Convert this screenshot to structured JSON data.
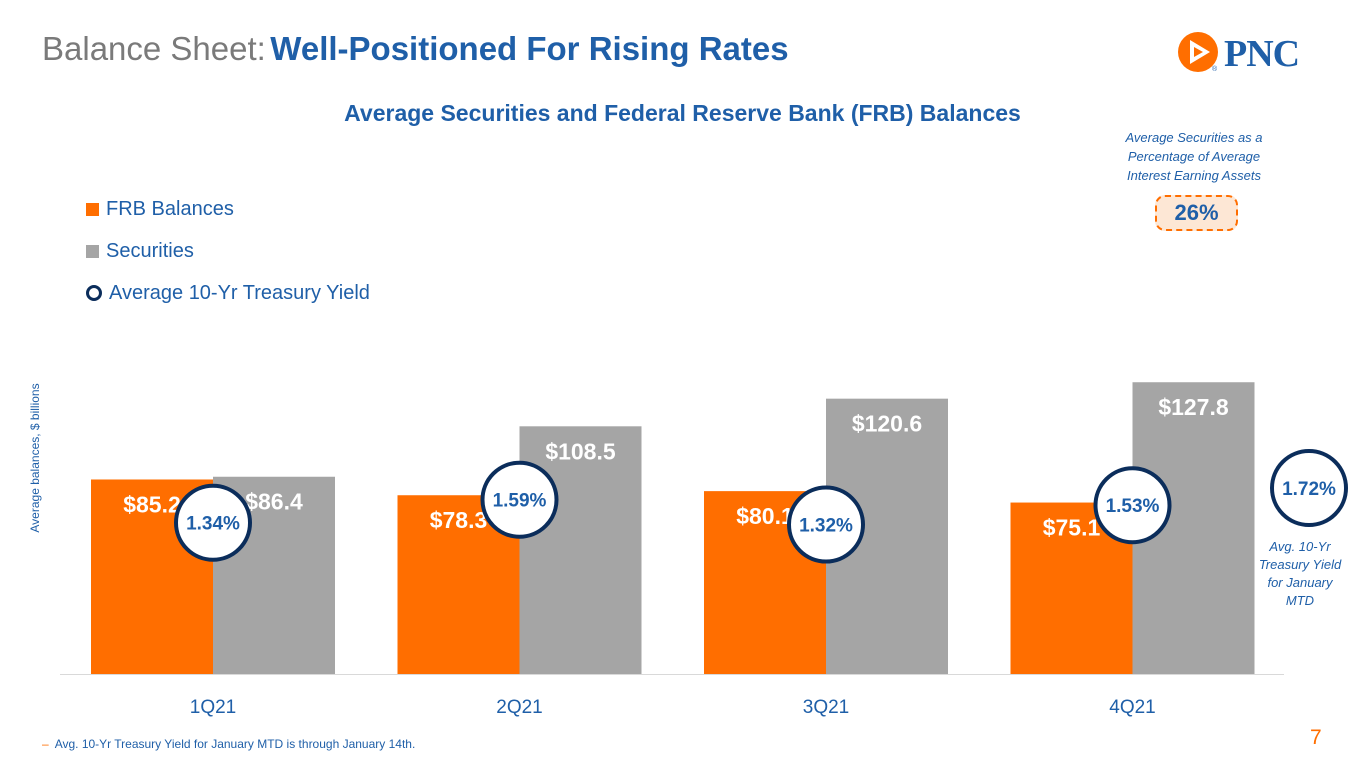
{
  "slide": {
    "title_lead": "Balance Sheet:",
    "title_main": "Well-Positioned For Rising Rates",
    "logo_text": "PNC",
    "logo_reg": "®",
    "page_number": "7"
  },
  "chart_data": {
    "type": "bar",
    "title": "Average Securities and Federal Reserve Bank (FRB) Balances",
    "ylabel": "Average balances, $ billions",
    "xlabel": "",
    "ylim": [
      0,
      150
    ],
    "categories": [
      "1Q21",
      "2Q21",
      "3Q21",
      "4Q21"
    ],
    "series": [
      {
        "name": "FRB Balances",
        "color": "#ff6e00",
        "values": [
          85.2,
          78.3,
          80.1,
          75.1
        ],
        "labels": [
          "$85.2",
          "$78.3",
          "$80.1",
          "$75.1"
        ]
      },
      {
        "name": "Securities",
        "color": "#a5a5a5",
        "values": [
          86.4,
          108.5,
          120.6,
          127.8
        ],
        "labels": [
          "$86.4",
          "$108.5",
          "$120.6",
          "$127.8"
        ]
      }
    ],
    "yield_series": {
      "name": "Average 10-Yr Treasury Yield",
      "color": "#0b2d5b",
      "values": [
        1.34,
        1.59,
        1.32,
        1.53
      ],
      "labels": [
        "1.34%",
        "1.59%",
        "1.32%",
        "1.53%"
      ],
      "january_mtd": {
        "value": 1.72,
        "label": "1.72%",
        "note": "Avg. 10-Yr Treasury Yield for January MTD"
      }
    },
    "securities_pct_of_earning_assets": {
      "value": 26,
      "label": "26%",
      "note": "Average Securities as a Percentage of Average Interest Earning Assets"
    },
    "legend": [
      "FRB Balances",
      "Securities",
      "Average 10-Yr Treasury Yield"
    ],
    "grid": false
  },
  "footnote": "Avg. 10-Yr Treasury Yield for January MTD is through January 14th.",
  "footnote_dash": "–"
}
